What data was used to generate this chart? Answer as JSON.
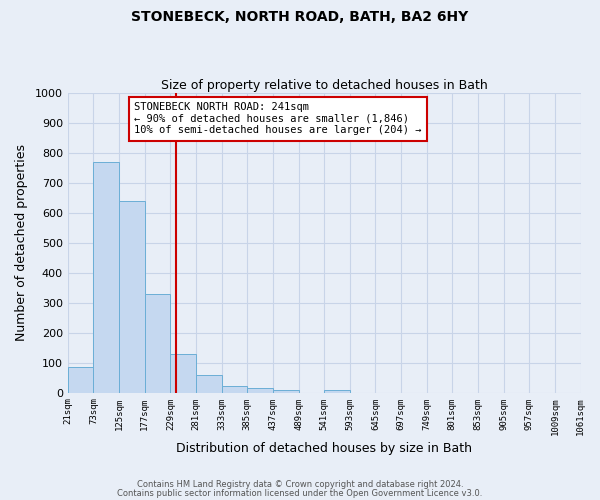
{
  "title": "STONEBECK, NORTH ROAD, BATH, BA2 6HY",
  "subtitle": "Size of property relative to detached houses in Bath",
  "xlabel": "Distribution of detached houses by size in Bath",
  "ylabel": "Number of detached properties",
  "bar_values": [
    85,
    770,
    640,
    330,
    130,
    58,
    22,
    15,
    8,
    0,
    8,
    0,
    0,
    0,
    0,
    0,
    0,
    0,
    0,
    0
  ],
  "bin_edges": [
    21,
    73,
    125,
    177,
    229,
    281,
    333,
    385,
    437,
    489,
    541,
    593,
    645,
    697,
    749,
    801,
    853,
    905,
    957,
    1009,
    1061
  ],
  "x_tick_labels": [
    "21sqm",
    "73sqm",
    "125sqm",
    "177sqm",
    "229sqm",
    "281sqm",
    "333sqm",
    "385sqm",
    "437sqm",
    "489sqm",
    "541sqm",
    "593sqm",
    "645sqm",
    "697sqm",
    "749sqm",
    "801sqm",
    "853sqm",
    "905sqm",
    "957sqm",
    "1009sqm",
    "1061sqm"
  ],
  "bar_color": "#c5d8f0",
  "bar_edge_color": "#6baed6",
  "vline_x": 241,
  "vline_color": "#cc0000",
  "ylim": [
    0,
    1000
  ],
  "yticks": [
    0,
    100,
    200,
    300,
    400,
    500,
    600,
    700,
    800,
    900,
    1000
  ],
  "annotation_title": "STONEBECK NORTH ROAD: 241sqm",
  "annotation_line1": "← 90% of detached houses are smaller (1,846)",
  "annotation_line2": "10% of semi-detached houses are larger (204) →",
  "annotation_box_facecolor": "#ffffff",
  "annotation_box_edgecolor": "#cc0000",
  "footer_line1": "Contains HM Land Registry data © Crown copyright and database right 2024.",
  "footer_line2": "Contains public sector information licensed under the Open Government Licence v3.0.",
  "background_color": "#e8eef7",
  "grid_color": "#c8d4e8",
  "title_fontsize": 10,
  "subtitle_fontsize": 9
}
